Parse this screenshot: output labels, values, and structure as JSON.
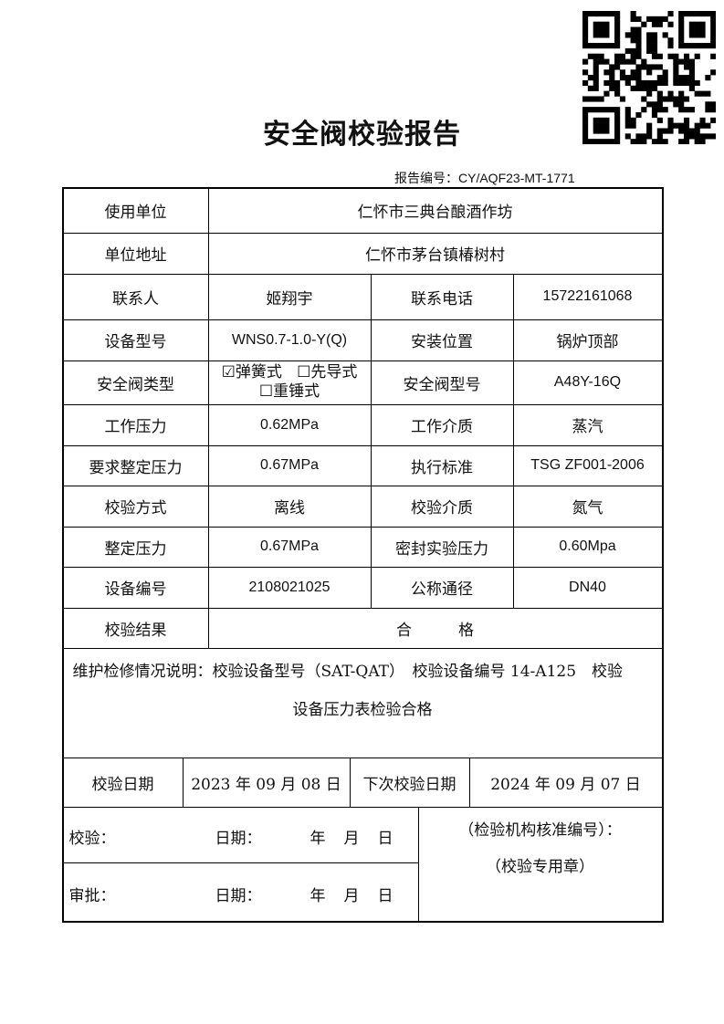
{
  "title": "安全阀校验报告",
  "report_no_label": "报告编号：",
  "report_no": "CY/AQF23-MT-1771",
  "rows": {
    "user_label": "使用单位",
    "user": "仁怀市三典台酿酒作坊",
    "addr_label": "单位地址",
    "addr": "仁怀市茅台镇椿树村",
    "contact_label": "联系人",
    "contact": "姬翔宇",
    "phone_label": "联系电话",
    "phone": "15722161068",
    "model_label": "设备型号",
    "model": "WNS0.7-1.0-Y(Q)",
    "location_label": "安装位置",
    "location": "锅炉顶部",
    "valve_type_label": "安全阀类型",
    "valve_types": [
      {
        "label": "弹簧式",
        "checked": true
      },
      {
        "label": "先导式",
        "checked": false
      },
      {
        "label": "重锤式",
        "checked": false
      }
    ],
    "valve_model_label": "安全阀型号",
    "valve_model": "A48Y-16Q",
    "work_pressure_label": "工作压力",
    "work_pressure": "0.62MPa",
    "medium_label": "工作介质",
    "medium": "蒸汽",
    "req_set_label": "要求整定压力",
    "req_set": "0.67MPa",
    "standard_label": "执行标准",
    "standard": "TSG ZF001-2006",
    "method_label": "校验方式",
    "method": "离线",
    "test_medium_label": "校验介质",
    "test_medium": "氮气",
    "set_label": "整定压力",
    "set": "0.67MPa",
    "seal_label": "密封实验压力",
    "seal": "0.60Mpa",
    "dev_no_label": "设备编号",
    "dev_no": "2108021025",
    "dn_label": "公称通径",
    "dn": "DN40",
    "result_label": "校验结果",
    "result": "合　　　格"
  },
  "notes_line1": "维护检修情况说明：校验设备型号（SAT-QAT）　校验设备编号 14-A125　校验",
  "notes_line2": "设备压力表检验合格",
  "dates": {
    "date_label": "校验日期",
    "date": "2023 年 09 月 08 日",
    "next_label": "下次校验日期",
    "next": "2024 年 09 月 07 日"
  },
  "sign": {
    "check_label": "校验：",
    "approve_label": "审批：",
    "date_label": "日期：",
    "year": "年",
    "month": "月",
    "day": "日",
    "org_label": "（检验机构核准编号）：",
    "stamp_label": "（校验专用章）"
  }
}
